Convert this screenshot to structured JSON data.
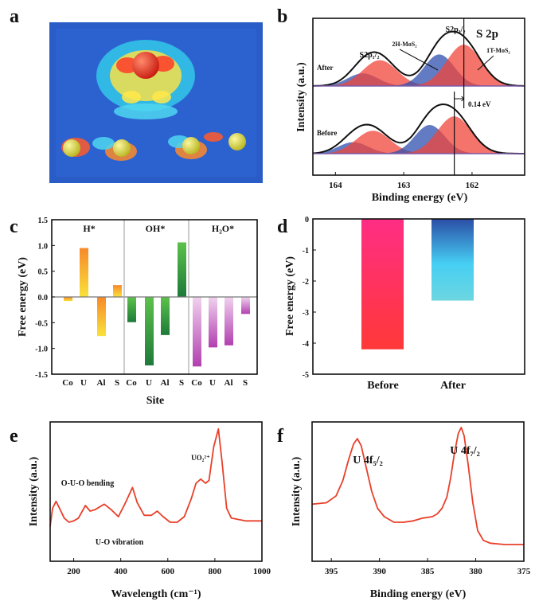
{
  "panel_labels": {
    "a": "a",
    "b": "b",
    "c": "c",
    "d": "d",
    "e": "e",
    "f": "f"
  },
  "colors": {
    "axis": "#111111",
    "spectrum": "#e8402a",
    "blue_component": "#2f4fae",
    "red_component": "#f0443a",
    "image_background": "#2a5cc8"
  },
  "chart_data": [
    {
      "panel": "a",
      "type": "image",
      "description_visible": "charge density difference rendering"
    },
    {
      "panel": "b",
      "type": "area",
      "title": "S 2p",
      "xlabel": "Binding energy (eV)",
      "ylabel": "Intensity (a.u.)",
      "xlim": [
        164.33,
        161.23
      ],
      "xticks": [
        "164",
        "163",
        "162"
      ],
      "xtick_values": [
        164,
        163,
        162
      ],
      "series": [
        {
          "name": "After",
          "components": [
            {
              "color": "blue",
              "center": 163.6,
              "height": 0.22,
              "sigma": 0.22
            },
            {
              "color": "red",
              "center": 163.35,
              "height": 0.45,
              "sigma": 0.25
            },
            {
              "color": "blue",
              "center": 162.48,
              "height": 0.55,
              "sigma": 0.22
            },
            {
              "color": "red",
              "center": 162.12,
              "height": 0.72,
              "sigma": 0.25
            }
          ],
          "marker_line": 162.12
        },
        {
          "name": "Before",
          "components": [
            {
              "color": "blue",
              "center": 163.74,
              "height": 0.2,
              "sigma": 0.22
            },
            {
              "color": "red",
              "center": 163.45,
              "height": 0.4,
              "sigma": 0.25
            },
            {
              "color": "blue",
              "center": 162.62,
              "height": 0.5,
              "sigma": 0.22
            },
            {
              "color": "red",
              "center": 162.26,
              "height": 0.65,
              "sigma": 0.25
            }
          ],
          "marker_line": 162.26
        }
      ],
      "annotations": {
        "s2p12": "S2p₁/₂",
        "s2p32": "S2p₃/₂",
        "h_mos2": "2H-MoS₂",
        "t_mos2": "1T-MoS₂",
        "shift": "0.14 eV"
      }
    },
    {
      "panel": "c",
      "type": "bar",
      "xlabel": "Site",
      "ylabel": "Free energy (eV)",
      "ylim": [
        -1.5,
        1.5
      ],
      "yticks": [
        "1.5",
        "1.0",
        "0.5",
        "0.0",
        "-0.5",
        "-1.0",
        "-1.5"
      ],
      "ytick_values": [
        1.5,
        1.0,
        0.5,
        0.0,
        -0.5,
        -1.0,
        -1.5
      ],
      "categories": [
        "Co",
        "U",
        "Al",
        "S"
      ],
      "groups": [
        {
          "name": "H*",
          "values": [
            -0.08,
            0.95,
            -0.76,
            0.23
          ],
          "color_top": "#f7892a",
          "color_bottom": "#f9e23a"
        },
        {
          "name": "OH*",
          "values": [
            -0.49,
            -1.33,
            -0.74,
            1.06
          ],
          "color_top": "#5cc24a",
          "color_bottom": "#1e7a3a"
        },
        {
          "name": "H₂O*",
          "values": [
            -1.35,
            -0.98,
            -0.94,
            -0.33
          ],
          "color_top": "#f0d2ee",
          "color_bottom": "#b23fb0"
        }
      ]
    },
    {
      "panel": "d",
      "type": "bar",
      "ylabel": "Free energy (eV)",
      "ylim": [
        -5,
        0
      ],
      "yticks": [
        "0",
        "-1",
        "-2",
        "-3",
        "-4",
        "-5"
      ],
      "ytick_values": [
        0,
        -1,
        -2,
        -3,
        -4,
        -5
      ],
      "categories": [
        "Before",
        "After"
      ],
      "values": [
        -4.2,
        -2.63
      ]
    },
    {
      "panel": "e",
      "type": "line",
      "xlabel": "Wavelength (cm⁻¹)",
      "ylabel": "Intensity (a.u.)",
      "xlim": [
        100,
        1000
      ],
      "xticks": [
        "200",
        "400",
        "600",
        "800",
        "1000"
      ],
      "xtick_values": [
        200,
        400,
        600,
        800,
        1000
      ],
      "x": [
        100,
        110,
        125,
        140,
        160,
        180,
        200,
        220,
        250,
        270,
        290,
        330,
        360,
        390,
        420,
        450,
        470,
        500,
        530,
        555,
        580,
        610,
        640,
        670,
        700,
        720,
        740,
        760,
        775,
        795,
        815,
        830,
        850,
        870,
        900,
        930,
        960,
        1000
      ],
      "y": [
        0.25,
        0.38,
        0.43,
        0.38,
        0.31,
        0.28,
        0.29,
        0.31,
        0.4,
        0.36,
        0.37,
        0.41,
        0.37,
        0.32,
        0.42,
        0.53,
        0.42,
        0.33,
        0.33,
        0.36,
        0.32,
        0.28,
        0.28,
        0.32,
        0.45,
        0.56,
        0.59,
        0.56,
        0.58,
        0.82,
        0.95,
        0.72,
        0.38,
        0.31,
        0.3,
        0.29,
        0.29,
        0.29
      ],
      "annotations": {
        "uo2": "UO₂²⁺",
        "bending": "O-U-O bending",
        "vibration": "U-O vibration"
      }
    },
    {
      "panel": "f",
      "type": "line",
      "xlabel": "Binding energy (eV)",
      "ylabel": "Intensity (a.u.)",
      "xlim": [
        397,
        375
      ],
      "xticks": [
        "395",
        "390",
        "385",
        "380",
        "375"
      ],
      "xtick_values": [
        395,
        390,
        385,
        380,
        375
      ],
      "x": [
        397,
        395.5,
        394.5,
        393.8,
        393.2,
        392.7,
        392.3,
        391.9,
        391.4,
        390.8,
        390.2,
        389.5,
        388.5,
        387.5,
        386.5,
        385.5,
        384.5,
        384,
        383.5,
        383,
        382.6,
        382.2,
        381.8,
        381.5,
        381.2,
        380.8,
        380.3,
        379.8,
        379.2,
        378.5,
        377,
        375
      ],
      "y": [
        0.41,
        0.42,
        0.47,
        0.58,
        0.73,
        0.84,
        0.88,
        0.83,
        0.68,
        0.5,
        0.38,
        0.32,
        0.28,
        0.28,
        0.29,
        0.31,
        0.32,
        0.34,
        0.38,
        0.46,
        0.6,
        0.78,
        0.92,
        0.96,
        0.9,
        0.7,
        0.42,
        0.22,
        0.15,
        0.13,
        0.12,
        0.12
      ],
      "annotations": {
        "peak1": "U 4f₅/₂",
        "peak2": "U 4f₇/₂"
      }
    }
  ]
}
